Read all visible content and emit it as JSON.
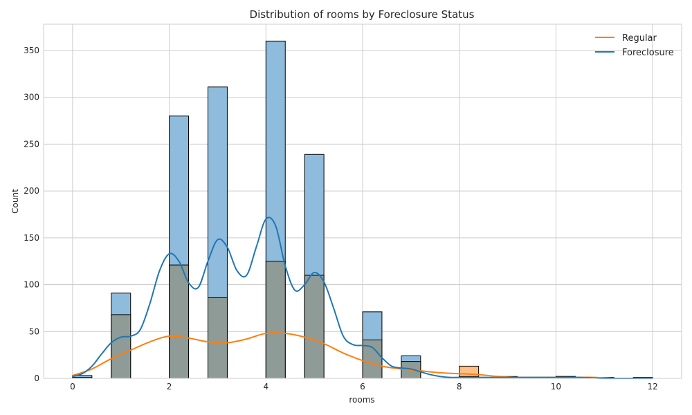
{
  "chart_data": {
    "type": "histogram",
    "title": "Distribution of rooms by Foreclosure Status",
    "xlabel": "rooms",
    "ylabel": "Count",
    "xlim": [
      -0.6,
      12.6
    ],
    "ylim": [
      0,
      378
    ],
    "xticks": [
      0,
      2,
      4,
      6,
      8,
      10,
      12
    ],
    "yticks": [
      0,
      50,
      100,
      150,
      200,
      250,
      300,
      350
    ],
    "grid": true,
    "legend_position": "top-right",
    "bin_width": 0.4,
    "colors": {
      "regular": "#ff7f0e",
      "foreclosure": "#1f77b4",
      "regular_fill": "#ffbf86",
      "foreclosure_fill": "#8fbbdc",
      "overlap_fill": "#8e9b97",
      "grid": "#cccccc"
    },
    "series": [
      {
        "name": "Regular",
        "bins": [
          {
            "x": 0.0,
            "count": 1
          },
          {
            "x": 0.8,
            "count": 68
          },
          {
            "x": 2.0,
            "count": 121
          },
          {
            "x": 2.8,
            "count": 86
          },
          {
            "x": 4.0,
            "count": 125
          },
          {
            "x": 4.8,
            "count": 110
          },
          {
            "x": 6.0,
            "count": 41
          },
          {
            "x": 6.8,
            "count": 18
          },
          {
            "x": 8.0,
            "count": 13
          },
          {
            "x": 8.8,
            "count": 1
          },
          {
            "x": 10.0,
            "count": 2
          },
          {
            "x": 10.8,
            "count": 1
          },
          {
            "x": 11.6,
            "count": 1
          }
        ],
        "kde": [
          [
            0,
            3
          ],
          [
            0.4,
            10
          ],
          [
            0.8,
            21
          ],
          [
            1.2,
            30
          ],
          [
            1.6,
            39
          ],
          [
            2.0,
            45
          ],
          [
            2.4,
            43
          ],
          [
            2.8,
            39
          ],
          [
            3.2,
            38
          ],
          [
            3.6,
            42
          ],
          [
            4.0,
            48
          ],
          [
            4.4,
            48
          ],
          [
            4.8,
            44
          ],
          [
            5.2,
            37
          ],
          [
            5.6,
            27
          ],
          [
            6.0,
            19
          ],
          [
            6.4,
            13
          ],
          [
            6.8,
            10
          ],
          [
            7.2,
            8
          ],
          [
            7.6,
            6
          ],
          [
            8.0,
            5
          ],
          [
            8.4,
            4
          ],
          [
            8.8,
            2
          ],
          [
            9.2,
            1
          ],
          [
            9.6,
            1
          ],
          [
            10.0,
            1
          ],
          [
            10.4,
            1
          ],
          [
            10.8,
            1
          ],
          [
            11.2,
            0
          ],
          [
            11.6,
            0
          ],
          [
            12.0,
            0
          ]
        ]
      },
      {
        "name": "Foreclosure",
        "bins": [
          {
            "x": 0.0,
            "count": 3
          },
          {
            "x": 0.8,
            "count": 91
          },
          {
            "x": 2.0,
            "count": 280
          },
          {
            "x": 2.8,
            "count": 311
          },
          {
            "x": 4.0,
            "count": 360
          },
          {
            "x": 4.8,
            "count": 239
          },
          {
            "x": 6.0,
            "count": 71
          },
          {
            "x": 6.8,
            "count": 24
          },
          {
            "x": 8.0,
            "count": 2
          },
          {
            "x": 8.8,
            "count": 2
          },
          {
            "x": 10.0,
            "count": 2
          },
          {
            "x": 10.8,
            "count": 0
          },
          {
            "x": 11.6,
            "count": 0
          }
        ],
        "kde": [
          [
            0,
            2
          ],
          [
            0.2,
            5
          ],
          [
            0.4,
            13
          ],
          [
            0.6,
            26
          ],
          [
            0.8,
            38
          ],
          [
            1.0,
            44
          ],
          [
            1.2,
            45
          ],
          [
            1.4,
            52
          ],
          [
            1.6,
            80
          ],
          [
            1.8,
            115
          ],
          [
            2.0,
            133
          ],
          [
            2.2,
            125
          ],
          [
            2.4,
            102
          ],
          [
            2.6,
            97
          ],
          [
            2.8,
            125
          ],
          [
            3.0,
            148
          ],
          [
            3.2,
            140
          ],
          [
            3.4,
            115
          ],
          [
            3.6,
            110
          ],
          [
            3.8,
            140
          ],
          [
            4.0,
            170
          ],
          [
            4.2,
            163
          ],
          [
            4.4,
            120
          ],
          [
            4.6,
            94
          ],
          [
            4.8,
            100
          ],
          [
            5.0,
            113
          ],
          [
            5.2,
            103
          ],
          [
            5.4,
            75
          ],
          [
            5.6,
            45
          ],
          [
            5.8,
            36
          ],
          [
            6.0,
            35
          ],
          [
            6.2,
            33
          ],
          [
            6.4,
            22
          ],
          [
            6.6,
            13
          ],
          [
            6.8,
            11
          ],
          [
            7.0,
            10
          ],
          [
            7.2,
            7
          ],
          [
            7.4,
            4
          ],
          [
            7.6,
            2
          ],
          [
            7.8,
            1
          ],
          [
            8.0,
            1
          ],
          [
            8.5,
            1
          ],
          [
            9.0,
            1
          ],
          [
            9.5,
            1
          ],
          [
            10.0,
            1
          ],
          [
            10.5,
            1
          ],
          [
            11.0,
            0
          ],
          [
            11.5,
            0
          ],
          [
            12.0,
            0
          ]
        ]
      }
    ]
  }
}
